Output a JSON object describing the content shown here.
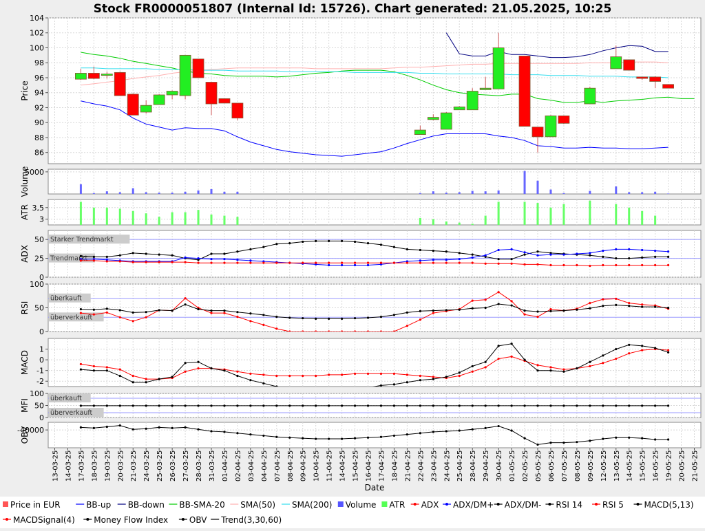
{
  "title": "Stock FR0000051807 (Internal Id: 15726). Chart generated: 21.05.2025, 10:25",
  "xlabel": "Date",
  "chart_data": {
    "type": "candlestick",
    "dates": [
      "13-03-25",
      "14-03-25",
      "17-03-25",
      "18-03-25",
      "19-03-25",
      "20-03-25",
      "21-03-25",
      "24-03-25",
      "25-03-25",
      "26-03-25",
      "27-03-25",
      "28-03-25",
      "31-03-25",
      "01-04-25",
      "02-04-25",
      "03-04-25",
      "04-04-25",
      "07-04-25",
      "08-04-25",
      "09-04-25",
      "10-04-25",
      "11-04-25",
      "14-04-25",
      "15-04-25",
      "16-04-25",
      "17-04-25",
      "18-04-25",
      "21-04-25",
      "22-04-25",
      "23-04-25",
      "24-04-25",
      "25-04-25",
      "28-04-25",
      "29-04-25",
      "30-04-25",
      "01-05-25",
      "02-05-25",
      "05-05-25",
      "06-05-25",
      "07-05-25",
      "08-05-25",
      "09-05-25",
      "12-05-25",
      "13-05-25",
      "14-05-25",
      "15-05-25",
      "16-05-25",
      "19-05-25",
      "20-05-25",
      "21-05-25"
    ],
    "ohlc": [
      null,
      null,
      [
        95.8,
        97.2,
        95.7,
        96.6
      ],
      [
        96.6,
        97.5,
        95.8,
        95.9
      ],
      [
        96.3,
        96.8,
        95.9,
        96.5
      ],
      [
        96.7,
        96.8,
        93.6,
        93.6
      ],
      [
        93.8,
        93.9,
        91.0,
        91.0
      ],
      [
        91.4,
        93.0,
        91.2,
        92.3
      ],
      [
        92.4,
        93.8,
        92.4,
        93.7
      ],
      [
        93.7,
        94.3,
        93.1,
        94.2
      ],
      [
        93.6,
        99.0,
        93.1,
        99.0
      ],
      [
        98.5,
        98.5,
        96.1,
        96.0
      ],
      [
        95.4,
        95.4,
        91.0,
        92.5
      ],
      [
        93.2,
        93.2,
        92.6,
        92.6
      ],
      [
        92.6,
        92.6,
        90.3,
        90.6
      ],
      null,
      null,
      null,
      null,
      null,
      null,
      null,
      null,
      null,
      null,
      null,
      null,
      null,
      [
        88.4,
        89.6,
        88.4,
        89.0
      ],
      [
        90.4,
        91.1,
        90.3,
        90.7
      ],
      [
        89.1,
        91.4,
        89.1,
        91.3
      ],
      [
        91.7,
        92.2,
        91.7,
        92.1
      ],
      [
        91.7,
        94.6,
        91.7,
        94.2
      ],
      [
        94.4,
        96.1,
        94.4,
        94.6
      ],
      [
        94.5,
        102.0,
        94.5,
        100.0
      ],
      null,
      [
        98.9,
        98.9,
        89.5,
        89.5
      ],
      [
        89.4,
        89.4,
        86.0,
        88.1
      ],
      [
        88.1,
        91.0,
        88.1,
        90.9
      ],
      [
        90.9,
        90.9,
        89.8,
        89.9
      ],
      null,
      [
        92.5,
        94.8,
        92.5,
        94.6
      ],
      null,
      [
        97.2,
        100.3,
        97.2,
        98.8
      ],
      [
        98.4,
        98.4,
        97.0,
        97.0
      ],
      [
        96.1,
        96.1,
        95.7,
        95.9
      ],
      [
        96.1,
        96.2,
        94.6,
        95.5
      ],
      [
        95.1,
        95.1,
        94.6,
        94.6
      ],
      null,
      null
    ],
    "bb_up": [
      null,
      null,
      92.9,
      92.5,
      92.2,
      91.7,
      90.6,
      89.8,
      89.4,
      89.0,
      89.3,
      89.2,
      89.2,
      88.9,
      88.1,
      87.4,
      86.9,
      86.4,
      86.1,
      85.9,
      85.7,
      85.6,
      85.5,
      85.7,
      85.9,
      86.1,
      86.6,
      87.2,
      87.7,
      88.2,
      88.5,
      88.5,
      88.5,
      88.5,
      88.2,
      88.0,
      87.6,
      86.9,
      86.8,
      86.6,
      86.6,
      86.7,
      86.6,
      86.6,
      86.5,
      86.5,
      86.6,
      86.7,
      null,
      null
    ],
    "bb_down": [
      null,
      null,
      null,
      null,
      null,
      null,
      null,
      null,
      null,
      null,
      null,
      null,
      null,
      null,
      null,
      null,
      null,
      null,
      null,
      null,
      null,
      null,
      null,
      null,
      null,
      null,
      null,
      null,
      null,
      null,
      102.0,
      99.2,
      98.9,
      98.9,
      99.5,
      99.1,
      99.1,
      98.9,
      98.7,
      98.7,
      98.8,
      99.1,
      99.6,
      100.0,
      100.3,
      100.2,
      99.5,
      99.5,
      null,
      null
    ],
    "bb_sma20": [
      null,
      null,
      99.4,
      99.1,
      98.9,
      98.6,
      98.2,
      97.9,
      97.6,
      97.3,
      96.9,
      96.6,
      96.5,
      96.3,
      96.2,
      96.2,
      96.2,
      96.1,
      96.2,
      96.4,
      96.6,
      96.7,
      96.9,
      97.0,
      97.0,
      97.0,
      96.8,
      96.3,
      95.7,
      95.0,
      94.4,
      94.0,
      93.8,
      93.7,
      93.6,
      93.8,
      93.8,
      93.2,
      93.0,
      92.7,
      92.7,
      92.9,
      92.7,
      92.9,
      93.0,
      93.1,
      93.3,
      93.4,
      93.2,
      93.2
    ],
    "sma50": [
      null,
      null,
      95.0,
      95.2,
      95.4,
      95.6,
      95.9,
      96.1,
      96.3,
      96.6,
      96.8,
      97.0,
      97.1,
      97.2,
      97.3,
      97.3,
      97.3,
      97.3,
      97.3,
      97.3,
      97.2,
      97.2,
      97.2,
      97.2,
      97.2,
      97.2,
      97.3,
      97.4,
      97.4,
      97.5,
      97.6,
      97.7,
      97.8,
      97.8,
      97.9,
      97.9,
      97.9,
      97.9,
      97.9,
      97.9,
      97.9,
      98.0,
      98.0,
      98.0,
      98.1,
      98.1,
      98.1,
      98.0,
      null,
      null
    ],
    "sma200": [
      null,
      null,
      97.3,
      97.3,
      97.2,
      97.2,
      97.2,
      97.2,
      97.1,
      97.1,
      97.1,
      97.0,
      97.0,
      97.0,
      96.9,
      96.9,
      96.9,
      96.9,
      96.8,
      96.8,
      96.8,
      96.8,
      96.8,
      96.7,
      96.7,
      96.7,
      96.7,
      96.7,
      96.6,
      96.6,
      96.5,
      96.5,
      96.5,
      96.5,
      96.5,
      96.4,
      96.4,
      96.4,
      96.3,
      96.3,
      96.3,
      96.2,
      96.2,
      96.2,
      96.1,
      96.1,
      96.1,
      96.0,
      null,
      null
    ],
    "volume": [
      0,
      0,
      2200,
      200,
      600,
      400,
      1300,
      400,
      300,
      300,
      500,
      800,
      1100,
      500,
      500,
      0,
      0,
      0,
      0,
      0,
      0,
      0,
      0,
      0,
      0,
      0,
      0,
      0,
      200,
      600,
      300,
      400,
      700,
      600,
      800,
      0,
      5200,
      3000,
      1000,
      200,
      0,
      700,
      0,
      1700,
      400,
      400,
      500,
      100,
      0,
      0
    ],
    "atr": [
      null,
      null,
      3.75,
      3.5,
      3.5,
      3.45,
      3.35,
      3.25,
      3.1,
      3.3,
      3.3,
      3.4,
      3.2,
      3.15,
      3.1,
      null,
      null,
      null,
      null,
      null,
      null,
      null,
      null,
      null,
      null,
      null,
      null,
      null,
      3.05,
      3.0,
      2.9,
      2.85,
      2.8,
      3.15,
      3.75,
      null,
      3.75,
      3.7,
      3.5,
      3.65,
      null,
      3.8,
      null,
      3.65,
      3.5,
      3.35,
      3.15,
      null,
      null,
      null
    ],
    "adx": [
      null,
      null,
      22,
      22,
      21,
      21,
      20,
      20,
      20,
      20,
      20,
      19,
      19,
      19,
      19,
      19,
      19,
      19,
      19,
      19,
      19,
      19,
      19,
      19,
      19,
      19,
      19,
      19,
      19,
      19,
      19,
      19,
      19,
      18,
      18,
      18,
      17,
      17,
      16,
      16,
      16,
      15,
      16,
      16,
      16,
      16,
      16,
      16,
      null,
      null
    ],
    "adx_dm_plus": [
      null,
      null,
      24,
      24,
      23,
      22,
      21,
      21,
      21,
      21,
      26,
      25,
      24,
      24,
      23,
      22,
      21,
      20,
      19,
      18,
      17,
      16,
      16,
      16,
      16,
      17,
      19,
      21,
      22,
      23,
      23,
      24,
      26,
      29,
      36,
      37,
      33,
      29,
      30,
      30,
      31,
      32,
      35,
      37,
      37,
      36,
      35,
      34,
      null,
      null
    ],
    "adx_dm_minus": [
      null,
      null,
      28,
      27,
      27,
      29,
      32,
      31,
      30,
      29,
      25,
      23,
      31,
      31,
      34,
      37,
      40,
      44,
      45,
      47,
      48,
      48,
      48,
      47,
      45,
      43,
      40,
      37,
      36,
      35,
      34,
      32,
      30,
      27,
      24,
      24,
      30,
      34,
      32,
      31,
      30,
      29,
      27,
      25,
      25,
      26,
      27,
      27,
      null,
      null
    ],
    "rsi14": [
      null,
      null,
      47,
      46,
      48,
      45,
      40,
      41,
      45,
      44,
      57,
      47,
      44,
      44,
      41,
      38,
      35,
      31,
      29,
      28,
      27,
      27,
      27,
      28,
      29,
      31,
      35,
      40,
      43,
      44,
      45,
      46,
      49,
      50,
      58,
      55,
      44,
      42,
      43,
      44,
      46,
      49,
      54,
      56,
      54,
      52,
      52,
      50,
      null,
      null
    ],
    "rsi5": [
      null,
      null,
      39,
      36,
      40,
      30,
      22,
      30,
      45,
      44,
      70,
      50,
      39,
      39,
      31,
      22,
      14,
      6,
      0,
      0,
      0,
      0,
      0,
      0,
      0,
      0,
      0,
      12,
      25,
      39,
      43,
      47,
      65,
      67,
      83,
      64,
      36,
      31,
      47,
      44,
      48,
      60,
      68,
      69,
      60,
      57,
      55,
      48,
      null,
      null
    ],
    "macd": [
      null,
      null,
      -0.9,
      -1.0,
      -1.0,
      -1.5,
      -2.1,
      -2.1,
      -1.8,
      -1.6,
      -0.3,
      -0.2,
      -0.8,
      -1.0,
      -1.5,
      -1.9,
      -2.2,
      -2.5,
      -2.7,
      -2.8,
      -2.9,
      -2.9,
      -2.9,
      -2.8,
      -2.6,
      -2.4,
      -2.3,
      -2.1,
      -1.9,
      -1.8,
      -1.6,
      -1.2,
      -0.6,
      -0.2,
      1.3,
      1.5,
      0.0,
      -1.0,
      -1.0,
      -1.1,
      -0.8,
      -0.2,
      0.4,
      1.0,
      1.4,
      1.3,
      1.1,
      0.7,
      null,
      null
    ],
    "macd_signal": [
      null,
      null,
      -0.4,
      -0.6,
      -0.7,
      -0.9,
      -1.5,
      -1.8,
      -1.8,
      -1.7,
      -1.1,
      -0.8,
      -0.8,
      -0.9,
      -1.1,
      -1.3,
      -1.4,
      -1.5,
      -1.5,
      -1.5,
      -1.5,
      -1.4,
      -1.4,
      -1.3,
      -1.3,
      -1.3,
      -1.3,
      -1.4,
      -1.5,
      -1.6,
      -1.7,
      -1.5,
      -1.1,
      -0.7,
      0.1,
      0.3,
      -0.1,
      -0.5,
      -0.7,
      -0.9,
      -0.8,
      -0.6,
      -0.3,
      0.1,
      0.6,
      0.9,
      1.0,
      0.9,
      null,
      null
    ],
    "mfi": [
      null,
      null,
      49,
      49,
      49,
      49,
      49,
      49,
      49,
      49,
      49,
      49,
      49,
      49,
      49,
      49,
      49,
      49,
      49,
      49,
      49,
      49,
      49,
      49,
      49,
      49,
      49,
      49,
      49,
      49,
      49,
      49,
      49,
      49,
      49,
      49,
      49,
      49,
      49,
      49,
      49,
      49,
      49,
      49,
      49,
      49,
      49,
      49,
      null,
      null
    ],
    "obv": [
      null,
      null,
      -36000,
      -37000,
      -35000,
      -33000,
      -39000,
      -38000,
      -36000,
      -37000,
      -36000,
      -39000,
      -42000,
      -43000,
      -45000,
      -47000,
      -49000,
      -51000,
      -52000,
      -53000,
      -54000,
      -54000,
      -54000,
      -53000,
      -52000,
      -51000,
      -49000,
      -47000,
      -45000,
      -43000,
      -42000,
      -41000,
      -39000,
      -37000,
      -34000,
      -41000,
      -53000,
      -63000,
      -60000,
      -60000,
      -59000,
      -57000,
      -54000,
      -52000,
      -52000,
      -53000,
      -55000,
      -55000,
      null,
      null
    ],
    "panels": {
      "price": {
        "ylabel": "Price",
        "ylim": [
          84.5,
          104
        ],
        "ticks": [
          86,
          88,
          90,
          92,
          94,
          96,
          98,
          100,
          102,
          104
        ]
      },
      "volume": {
        "ylabel": "Volume",
        "ylim": [
          0,
          5600
        ],
        "ticks": [
          5000
        ]
      },
      "atr": {
        "ylabel": "ATR",
        "ylim": [
          2.75,
          3.85
        ],
        "ticks": [
          3,
          3.5
        ],
        "tick_labels": [
          "3",
          "3,5"
        ]
      },
      "adx": {
        "ylabel": "ADX",
        "ylim": [
          0,
          62
        ],
        "ticks": [
          0,
          25,
          50
        ],
        "bands": [
          {
            "label": "Starker Trendmarkt",
            "value": 50
          },
          {
            "label": "Trendmarkt",
            "value": 25
          }
        ]
      },
      "rsi": {
        "ylabel": "RSI",
        "ylim": [
          0,
          100
        ],
        "ticks": [
          0,
          50,
          100
        ],
        "bands": [
          {
            "label": "überkauft",
            "value": 70
          },
          {
            "label": "überverkauft",
            "value": 30
          }
        ]
      },
      "macd": {
        "ylabel": "MACD",
        "ylim": [
          -2.5,
          2.0
        ],
        "ticks": [
          -2,
          -1,
          0,
          1
        ]
      },
      "mfi": {
        "ylabel": "MFI",
        "ylim": [
          0,
          100
        ],
        "ticks": [
          0,
          50,
          100
        ],
        "bands": [
          {
            "label": "überkauft",
            "value": 80
          },
          {
            "label": "überverkauft",
            "value": 20
          }
        ]
      },
      "obv": {
        "ylabel": "OBV",
        "ylim": [
          -68000,
          -28000
        ],
        "ticks": [
          -40000
        ]
      }
    }
  },
  "legend": [
    {
      "label": "Price in EUR",
      "color": "#ff5555",
      "kind": "box"
    },
    {
      "label": "BB-up",
      "color": "#0000ff",
      "kind": "line"
    },
    {
      "label": "BB-down",
      "color": "#000080",
      "kind": "line"
    },
    {
      "label": "BB-SMA-20",
      "color": "#00cc00",
      "kind": "line"
    },
    {
      "label": "SMA(50)",
      "color": "#ffb0b0",
      "kind": "line"
    },
    {
      "label": "SMA(200)",
      "color": "#33ddee",
      "kind": "line"
    },
    {
      "label": "Volume",
      "color": "#5555ff",
      "kind": "box"
    },
    {
      "label": "ATR",
      "color": "#55ff55",
      "kind": "box"
    },
    {
      "label": "ADX",
      "color": "#ff0000",
      "kind": "marker"
    },
    {
      "label": "ADX/DM+",
      "color": "#0000ff",
      "kind": "marker"
    },
    {
      "label": "ADX/DM-",
      "color": "#000000",
      "kind": "marker"
    },
    {
      "label": "RSI 14",
      "color": "#000000",
      "kind": "marker"
    },
    {
      "label": "RSI 5",
      "color": "#ff0000",
      "kind": "marker"
    },
    {
      "label": "MACD(5,13)",
      "color": "#000000",
      "kind": "marker"
    },
    {
      "label": "MACDSignal(4)",
      "color": "#ff0000",
      "kind": "marker"
    },
    {
      "label": "Money Flow Index",
      "color": "#000000",
      "kind": "marker"
    },
    {
      "label": "OBV",
      "color": "#000000",
      "kind": "marker"
    },
    {
      "label": "Trend(3,30,60)",
      "color": "#000000",
      "kind": "line"
    }
  ]
}
